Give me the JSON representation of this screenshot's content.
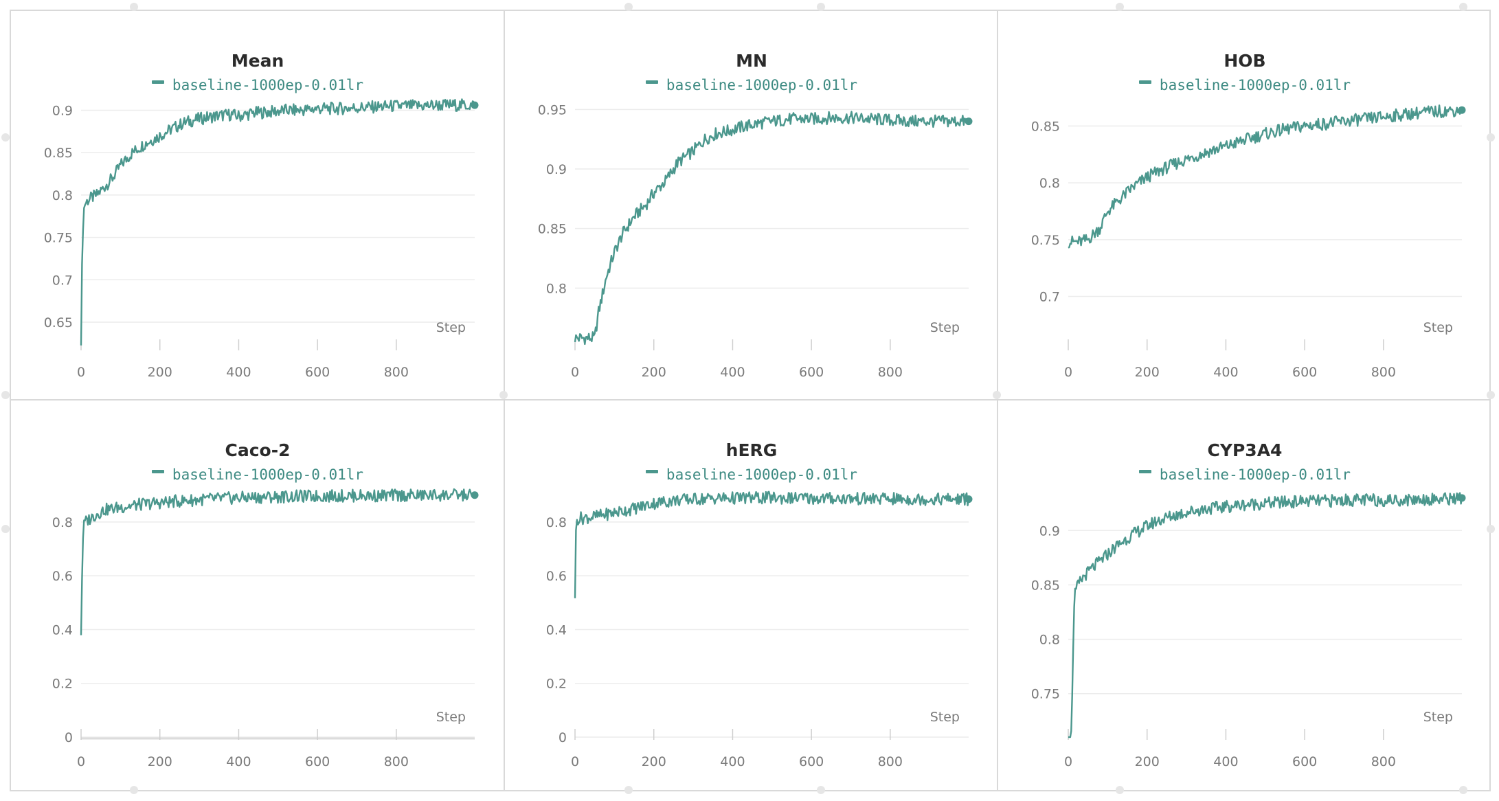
{
  "colors": {
    "series": "#4b978d",
    "grid": "#ececec",
    "frame": "#d9d9d9"
  },
  "legend_label": "baseline-1000ep-0.01lr",
  "x_axis_label": "Step",
  "chart_data": [
    {
      "type": "line",
      "title": "Mean",
      "xlim": [
        0,
        999
      ],
      "ylim": [
        0.62,
        0.915
      ],
      "x_ticks": [
        0,
        200,
        400,
        600,
        800
      ],
      "y_ticks": [
        0.65,
        0.7,
        0.75,
        0.8,
        0.85,
        0.9
      ],
      "y_tick_labels": [
        "0.65",
        "0.7",
        "0.75",
        "0.8",
        "0.85",
        "0.9"
      ],
      "x_baseline": false,
      "series": [
        {
          "name": "baseline-1000ep-0.01lr",
          "x": [
            0,
            2,
            4,
            6,
            10,
            20,
            40,
            60,
            80,
            100,
            130,
            160,
            200,
            230,
            260,
            300,
            340,
            380,
            400,
            440,
            480,
            520,
            560,
            600,
            650,
            700,
            750,
            800,
            850,
            900,
            950,
            999
          ],
          "y": [
            0.63,
            0.7,
            0.75,
            0.78,
            0.79,
            0.795,
            0.8,
            0.81,
            0.82,
            0.835,
            0.85,
            0.86,
            0.87,
            0.878,
            0.885,
            0.89,
            0.893,
            0.895,
            0.893,
            0.897,
            0.898,
            0.9,
            0.9,
            0.902,
            0.902,
            0.903,
            0.904,
            0.905,
            0.905,
            0.906,
            0.906,
            0.906
          ]
        }
      ]
    },
    {
      "type": "line",
      "title": "MN",
      "xlim": [
        0,
        999
      ],
      "ylim": [
        0.75,
        0.96
      ],
      "x_ticks": [
        0,
        200,
        400,
        600,
        800
      ],
      "y_ticks": [
        0.8,
        0.85,
        0.9,
        0.95
      ],
      "y_tick_labels": [
        "0.8",
        "0.85",
        "0.9",
        "0.95"
      ],
      "x_baseline": false,
      "series": [
        {
          "name": "baseline-1000ep-0.01lr",
          "x": [
            0,
            20,
            50,
            60,
            80,
            100,
            120,
            150,
            180,
            200,
            230,
            260,
            300,
            330,
            360,
            390,
            420,
            460,
            500,
            550,
            600,
            650,
            700,
            750,
            800,
            850,
            900,
            950,
            999
          ],
          "y": [
            0.758,
            0.758,
            0.758,
            0.78,
            0.81,
            0.83,
            0.845,
            0.86,
            0.87,
            0.88,
            0.89,
            0.905,
            0.915,
            0.925,
            0.93,
            0.932,
            0.935,
            0.938,
            0.94,
            0.942,
            0.942,
            0.943,
            0.943,
            0.942,
            0.941,
            0.94,
            0.94,
            0.94,
            0.94
          ]
        }
      ]
    },
    {
      "type": "line",
      "title": "HOB",
      "xlim": [
        0,
        999
      ],
      "ylim": [
        0.655,
        0.875
      ],
      "x_ticks": [
        0,
        200,
        400,
        600,
        800
      ],
      "y_ticks": [
        0.7,
        0.75,
        0.8,
        0.85
      ],
      "y_tick_labels": [
        "0.7",
        "0.75",
        "0.8",
        "0.85"
      ],
      "x_baseline": false,
      "series": [
        {
          "name": "baseline-1000ep-0.01lr",
          "x": [
            0,
            5,
            10,
            15,
            30,
            50,
            80,
            100,
            130,
            160,
            200,
            240,
            280,
            320,
            360,
            400,
            450,
            500,
            550,
            600,
            650,
            700,
            750,
            800,
            850,
            900,
            950,
            999
          ],
          "y": [
            0.748,
            0.748,
            0.748,
            0.748,
            0.748,
            0.75,
            0.76,
            0.775,
            0.785,
            0.795,
            0.805,
            0.812,
            0.818,
            0.823,
            0.828,
            0.832,
            0.838,
            0.843,
            0.847,
            0.85,
            0.852,
            0.854,
            0.856,
            0.858,
            0.86,
            0.862,
            0.863,
            0.864
          ]
        }
      ]
    },
    {
      "type": "line",
      "title": "Caco-2",
      "xlim": [
        0,
        999
      ],
      "ylim": [
        0,
        0.93
      ],
      "x_ticks": [
        0,
        200,
        400,
        600,
        800
      ],
      "y_ticks": [
        0,
        0.2,
        0.4,
        0.6,
        0.8
      ],
      "y_tick_labels": [
        "0",
        "0.2",
        "0.4",
        "0.6",
        "0.8"
      ],
      "x_baseline": true,
      "series": [
        {
          "name": "baseline-1000ep-0.01lr",
          "x": [
            0,
            2,
            4,
            6,
            10,
            20,
            40,
            60,
            100,
            150,
            200,
            250,
            300,
            350,
            400,
            450,
            500,
            550,
            600,
            650,
            700,
            750,
            800,
            850,
            900,
            950,
            999
          ],
          "y": [
            0.39,
            0.55,
            0.72,
            0.78,
            0.8,
            0.81,
            0.83,
            0.845,
            0.855,
            0.865,
            0.872,
            0.878,
            0.883,
            0.887,
            0.89,
            0.892,
            0.894,
            0.895,
            0.896,
            0.897,
            0.898,
            0.898,
            0.899,
            0.899,
            0.9,
            0.9,
            0.9
          ]
        }
      ]
    },
    {
      "type": "line",
      "title": "hERG",
      "xlim": [
        0,
        999
      ],
      "ylim": [
        0,
        0.93
      ],
      "x_ticks": [
        0,
        200,
        400,
        600,
        800
      ],
      "y_ticks": [
        0,
        0.2,
        0.4,
        0.6,
        0.8
      ],
      "y_tick_labels": [
        "0",
        "0.2",
        "0.4",
        "0.6",
        "0.8"
      ],
      "x_baseline": false,
      "series": [
        {
          "name": "baseline-1000ep-0.01lr",
          "x": [
            0,
            3,
            6,
            10,
            20,
            50,
            100,
            150,
            200,
            250,
            300,
            350,
            400,
            450,
            500,
            550,
            600,
            650,
            700,
            750,
            800,
            850,
            900,
            950,
            999
          ],
          "y": [
            0.53,
            0.8,
            0.81,
            0.815,
            0.815,
            0.82,
            0.835,
            0.85,
            0.87,
            0.88,
            0.885,
            0.888,
            0.889,
            0.89,
            0.89,
            0.889,
            0.888,
            0.888,
            0.887,
            0.886,
            0.886,
            0.885,
            0.885,
            0.885,
            0.885
          ]
        }
      ]
    },
    {
      "type": "line",
      "title": "CYP3A4",
      "xlim": [
        0,
        999
      ],
      "ylim": [
        0.71,
        0.94
      ],
      "x_ticks": [
        0,
        200,
        400,
        600,
        800
      ],
      "y_ticks": [
        0.75,
        0.8,
        0.85,
        0.9
      ],
      "y_tick_labels": [
        "0.75",
        "0.8",
        "0.85",
        "0.9"
      ],
      "x_baseline": false,
      "series": [
        {
          "name": "baseline-1000ep-0.01lr",
          "x": [
            0,
            8,
            12,
            16,
            25,
            40,
            60,
            90,
            120,
            150,
            180,
            220,
            260,
            300,
            350,
            400,
            450,
            500,
            550,
            600,
            650,
            700,
            750,
            800,
            850,
            900,
            950,
            999
          ],
          "y": [
            0.712,
            0.712,
            0.79,
            0.84,
            0.85,
            0.858,
            0.865,
            0.875,
            0.885,
            0.893,
            0.9,
            0.908,
            0.913,
            0.917,
            0.92,
            0.922,
            0.924,
            0.925,
            0.926,
            0.927,
            0.927,
            0.928,
            0.928,
            0.928,
            0.928,
            0.929,
            0.929,
            0.93
          ]
        }
      ]
    }
  ]
}
